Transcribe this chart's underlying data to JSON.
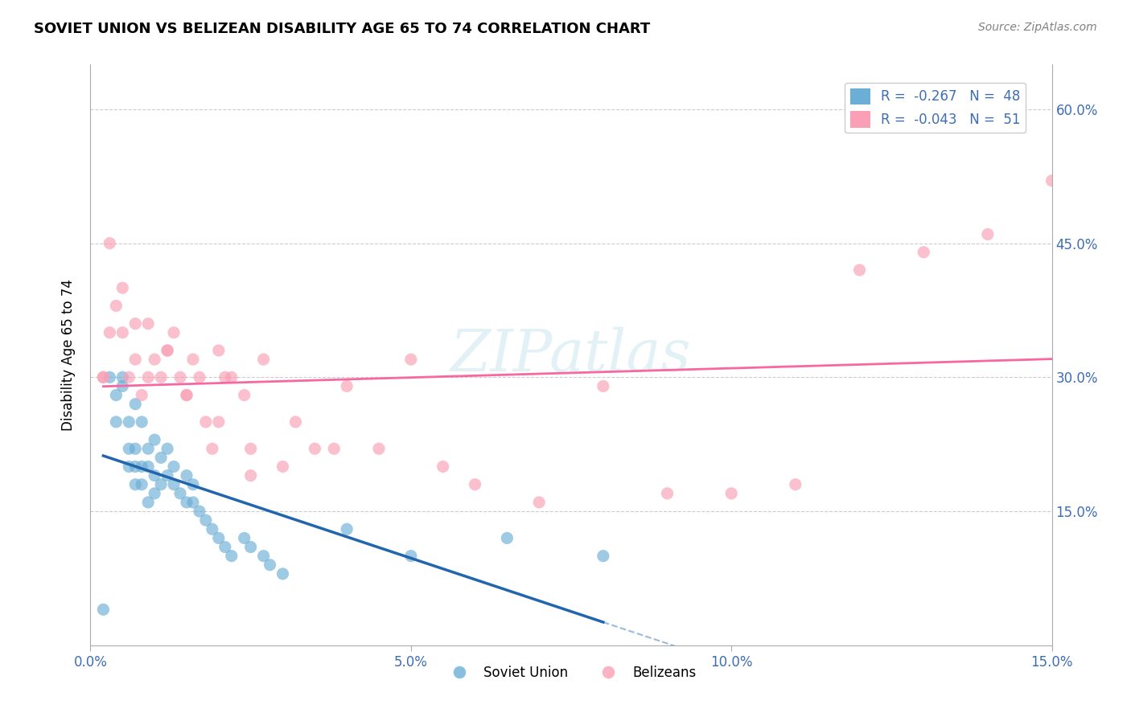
{
  "title": "SOVIET UNION VS BELIZEAN DISABILITY AGE 65 TO 74 CORRELATION CHART",
  "source": "Source: ZipAtlas.com",
  "ylabel": "Disability Age 65 to 74",
  "x_tick_labels": [
    "0.0%",
    "5.0%",
    "10.0%",
    "15.0%"
  ],
  "x_ticks": [
    0.0,
    0.05,
    0.1,
    0.15
  ],
  "y_tick_labels_right": [
    "60.0%",
    "45.0%",
    "30.0%",
    "15.0%"
  ],
  "y_ticks_right": [
    0.6,
    0.45,
    0.3,
    0.15
  ],
  "xlim": [
    0.0,
    0.15
  ],
  "ylim": [
    0.0,
    0.65
  ],
  "legend_blue_label": "R =  -0.267   N =  48",
  "legend_pink_label": "R =  -0.043   N =  51",
  "blue_color": "#6baed6",
  "pink_color": "#fa9fb5",
  "blue_line_color": "#2166ac",
  "pink_line_color": "#f768a1",
  "watermark": "ZIPatlas",
  "bottom_legend_soviet": "Soviet Union",
  "bottom_legend_belizean": "Belizeans",
  "soviet_x": [
    0.002,
    0.003,
    0.004,
    0.004,
    0.005,
    0.005,
    0.006,
    0.006,
    0.006,
    0.007,
    0.007,
    0.007,
    0.007,
    0.008,
    0.008,
    0.008,
    0.009,
    0.009,
    0.009,
    0.01,
    0.01,
    0.01,
    0.011,
    0.011,
    0.012,
    0.012,
    0.013,
    0.013,
    0.014,
    0.015,
    0.015,
    0.016,
    0.016,
    0.017,
    0.018,
    0.019,
    0.02,
    0.021,
    0.022,
    0.024,
    0.025,
    0.027,
    0.028,
    0.03,
    0.04,
    0.05,
    0.065,
    0.08
  ],
  "soviet_y": [
    0.04,
    0.3,
    0.25,
    0.28,
    0.29,
    0.3,
    0.2,
    0.22,
    0.25,
    0.18,
    0.2,
    0.22,
    0.27,
    0.18,
    0.2,
    0.25,
    0.16,
    0.2,
    0.22,
    0.17,
    0.19,
    0.23,
    0.18,
    0.21,
    0.19,
    0.22,
    0.18,
    0.2,
    0.17,
    0.16,
    0.19,
    0.16,
    0.18,
    0.15,
    0.14,
    0.13,
    0.12,
    0.11,
    0.1,
    0.12,
    0.11,
    0.1,
    0.09,
    0.08,
    0.13,
    0.1,
    0.12,
    0.1
  ],
  "belizean_x": [
    0.002,
    0.003,
    0.004,
    0.005,
    0.006,
    0.007,
    0.008,
    0.009,
    0.01,
    0.011,
    0.012,
    0.013,
    0.014,
    0.015,
    0.016,
    0.017,
    0.018,
    0.019,
    0.02,
    0.021,
    0.022,
    0.024,
    0.025,
    0.027,
    0.03,
    0.032,
    0.035,
    0.038,
    0.04,
    0.045,
    0.05,
    0.055,
    0.06,
    0.07,
    0.08,
    0.09,
    0.1,
    0.11,
    0.12,
    0.13,
    0.14,
    0.15,
    0.002,
    0.003,
    0.005,
    0.007,
    0.009,
    0.012,
    0.015,
    0.02,
    0.025
  ],
  "belizean_y": [
    0.3,
    0.35,
    0.38,
    0.4,
    0.3,
    0.32,
    0.28,
    0.3,
    0.32,
    0.3,
    0.33,
    0.35,
    0.3,
    0.28,
    0.32,
    0.3,
    0.25,
    0.22,
    0.33,
    0.3,
    0.3,
    0.28,
    0.22,
    0.32,
    0.2,
    0.25,
    0.22,
    0.22,
    0.29,
    0.22,
    0.32,
    0.2,
    0.18,
    0.16,
    0.29,
    0.17,
    0.17,
    0.18,
    0.42,
    0.44,
    0.46,
    0.52,
    0.3,
    0.45,
    0.35,
    0.36,
    0.36,
    0.33,
    0.28,
    0.25,
    0.19
  ]
}
